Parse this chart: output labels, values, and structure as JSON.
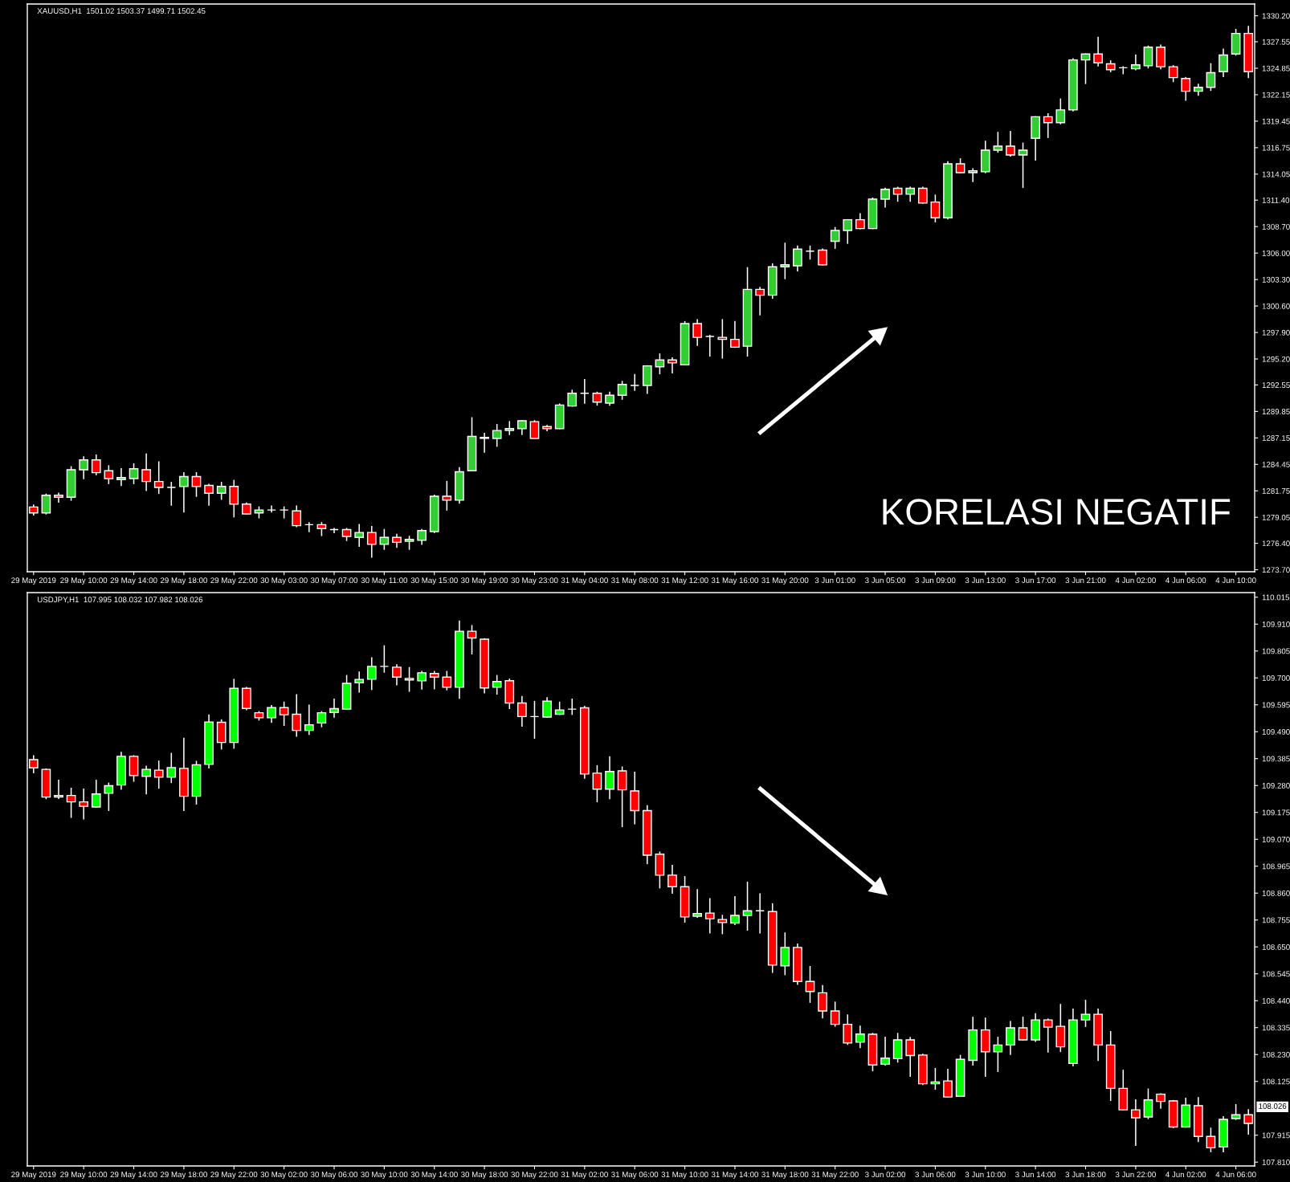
{
  "chart_data": [
    {
      "type": "candlestick",
      "title": "XAUUSD,H1  1501.02 1503.37 1499.71 1502.45",
      "categories": [
        "29 May 2019",
        null,
        null,
        null,
        "29 May 10:00",
        null,
        null,
        null,
        "29 May 14:00",
        null,
        null,
        null,
        "29 May 18:00",
        null,
        null,
        null,
        "29 May 22:00",
        null,
        null,
        null,
        "30 May 03:00",
        null,
        null,
        null,
        "30 May 07:00",
        null,
        null,
        null,
        "30 May 11:00",
        null,
        null,
        null,
        "30 May 15:00",
        null,
        null,
        null,
        "30 May 19:00",
        null,
        null,
        null,
        "30 May 23:00",
        null,
        null,
        null,
        "31 May 04:00",
        null,
        null,
        null,
        "31 May 08:00",
        null,
        null,
        null,
        "31 May 12:00",
        null,
        null,
        null,
        "31 May 16:00",
        null,
        null,
        null,
        "31 May 20:00",
        null,
        null,
        null,
        "3 Jun 01:00",
        null,
        null,
        null,
        "3 Jun 05:00",
        null,
        null,
        null,
        "3 Jun 09:00",
        null,
        null,
        null,
        "3 Jun 13:00",
        null,
        null,
        null,
        "3 Jun 17:00",
        null,
        null,
        null,
        "3 Jun 21:00",
        null,
        null,
        null,
        "4 Jun 02:00",
        null,
        null,
        null,
        "4 Jun 06:00",
        null,
        null,
        null,
        "4 Jun 10:00",
        null
      ],
      "ohlc": [
        [
          1280.1,
          1280.3,
          1279.3,
          1279.5
        ],
        [
          1279.5,
          1281.4,
          1279.4,
          1281.3
        ],
        [
          1281.3,
          1281.5,
          1280.6,
          1281.1
        ],
        [
          1281.1,
          1284.2,
          1280.8,
          1283.9
        ],
        [
          1283.9,
          1285.2,
          1283.0,
          1284.9
        ],
        [
          1284.9,
          1285.4,
          1283.4,
          1283.6
        ],
        [
          1283.8,
          1284.3,
          1282.5,
          1283.0
        ],
        [
          1282.9,
          1284.0,
          1282.3,
          1283.1
        ],
        [
          1283.0,
          1284.5,
          1282.5,
          1284.0
        ],
        [
          1283.9,
          1285.5,
          1281.8,
          1282.7
        ],
        [
          1282.7,
          1284.7,
          1281.5,
          1282.1
        ],
        [
          1282.1,
          1282.6,
          1280.3,
          1282.1
        ],
        [
          1282.2,
          1283.6,
          1279.6,
          1283.2
        ],
        [
          1283.2,
          1283.6,
          1281.2,
          1282.2
        ],
        [
          1282.3,
          1282.4,
          1280.3,
          1281.5
        ],
        [
          1281.5,
          1282.6,
          1280.9,
          1282.2
        ],
        [
          1282.2,
          1282.8,
          1279.1,
          1280.4
        ],
        [
          1280.4,
          1280.5,
          1279.4,
          1279.4
        ],
        [
          1279.5,
          1280.1,
          1279.0,
          1279.8
        ],
        [
          1279.8,
          1280.2,
          1279.6,
          1279.8
        ],
        [
          1279.8,
          1280.1,
          1279.0,
          1279.8
        ],
        [
          1279.7,
          1280.2,
          1278.1,
          1278.2
        ],
        [
          1278.3,
          1278.5,
          1277.6,
          1278.3
        ],
        [
          1278.3,
          1278.5,
          1277.2,
          1277.9
        ],
        [
          1277.8,
          1277.9,
          1277.5,
          1277.8
        ],
        [
          1277.8,
          1277.9,
          1276.7,
          1277.1
        ],
        [
          1277.0,
          1278.3,
          1276.1,
          1277.5
        ],
        [
          1277.5,
          1278.1,
          1275.0,
          1276.3
        ],
        [
          1276.3,
          1277.8,
          1275.8,
          1277.0
        ],
        [
          1277.0,
          1277.3,
          1276.0,
          1276.5
        ],
        [
          1276.6,
          1277.1,
          1275.8,
          1276.8
        ],
        [
          1276.7,
          1277.8,
          1276.3,
          1277.7
        ],
        [
          1277.6,
          1281.3,
          1277.5,
          1281.2
        ],
        [
          1281.2,
          1282.7,
          1279.8,
          1280.8
        ],
        [
          1280.8,
          1284.1,
          1280.5,
          1283.7
        ],
        [
          1283.8,
          1289.2,
          1283.8,
          1287.3
        ],
        [
          1287.2,
          1287.6,
          1285.7,
          1287.1
        ],
        [
          1287.1,
          1288.5,
          1286.3,
          1287.9
        ],
        [
          1287.9,
          1288.8,
          1287.5,
          1288.1
        ],
        [
          1288.1,
          1288.9,
          1287.5,
          1288.9
        ],
        [
          1288.8,
          1288.9,
          1287.1,
          1287.1
        ],
        [
          1288.3,
          1288.4,
          1287.9,
          1288.1
        ],
        [
          1288.1,
          1290.6,
          1288.1,
          1290.5
        ],
        [
          1290.4,
          1292.0,
          1290.4,
          1291.7
        ],
        [
          1291.7,
          1293.1,
          1290.7,
          1291.7
        ],
        [
          1291.7,
          1291.8,
          1290.5,
          1290.8
        ],
        [
          1290.7,
          1291.8,
          1290.5,
          1291.5
        ],
        [
          1291.5,
          1292.9,
          1291.1,
          1292.6
        ],
        [
          1292.5,
          1293.6,
          1292.0,
          1292.5
        ],
        [
          1292.5,
          1294.5,
          1291.7,
          1294.5
        ],
        [
          1294.4,
          1295.7,
          1293.7,
          1295.1
        ],
        [
          1295.1,
          1295.3,
          1293.8,
          1294.8
        ],
        [
          1294.6,
          1299.0,
          1294.6,
          1298.8
        ],
        [
          1298.8,
          1299.2,
          1296.6,
          1297.4
        ],
        [
          1297.5,
          1297.6,
          1295.5,
          1297.5
        ],
        [
          1297.4,
          1299.2,
          1295.3,
          1297.2
        ],
        [
          1297.2,
          1299.0,
          1296.4,
          1296.4
        ],
        [
          1296.5,
          1304.5,
          1295.5,
          1302.3
        ],
        [
          1302.3,
          1302.5,
          1299.7,
          1301.7
        ],
        [
          1301.7,
          1304.9,
          1301.4,
          1304.6
        ],
        [
          1304.6,
          1307.0,
          1303.4,
          1304.8
        ],
        [
          1304.7,
          1306.7,
          1304.2,
          1306.4
        ],
        [
          1306.2,
          1306.7,
          1305.4,
          1306.2
        ],
        [
          1306.3,
          1306.4,
          1304.8,
          1304.8
        ],
        [
          1307.2,
          1308.6,
          1306.5,
          1308.3
        ],
        [
          1308.3,
          1309.4,
          1307.0,
          1309.4
        ],
        [
          1309.4,
          1310.0,
          1308.5,
          1308.5
        ],
        [
          1308.5,
          1311.6,
          1308.5,
          1311.5
        ],
        [
          1311.5,
          1312.6,
          1310.7,
          1312.5
        ],
        [
          1312.6,
          1312.7,
          1311.3,
          1312.0
        ],
        [
          1312.0,
          1312.7,
          1311.3,
          1312.6
        ],
        [
          1312.6,
          1312.7,
          1311.1,
          1311.1
        ],
        [
          1311.2,
          1311.9,
          1309.2,
          1309.6
        ],
        [
          1309.6,
          1315.3,
          1309.5,
          1315.1
        ],
        [
          1315.1,
          1315.6,
          1314.2,
          1314.2
        ],
        [
          1314.2,
          1314.6,
          1313.3,
          1314.4
        ],
        [
          1314.3,
          1317.4,
          1314.2,
          1316.5
        ],
        [
          1316.5,
          1318.3,
          1316.3,
          1316.9
        ],
        [
          1316.9,
          1318.4,
          1315.9,
          1316.0
        ],
        [
          1316.0,
          1317.2,
          1312.7,
          1316.5
        ],
        [
          1317.7,
          1319.9,
          1315.5,
          1319.9
        ],
        [
          1319.9,
          1320.2,
          1317.8,
          1319.3
        ],
        [
          1319.3,
          1321.7,
          1319.2,
          1320.6
        ],
        [
          1320.6,
          1325.8,
          1320.5,
          1325.7
        ],
        [
          1325.7,
          1326.3,
          1323.3,
          1326.3
        ],
        [
          1326.3,
          1328.0,
          1325.1,
          1325.4
        ],
        [
          1325.3,
          1325.6,
          1324.5,
          1324.7
        ],
        [
          1324.9,
          1325.0,
          1324.3,
          1324.9
        ],
        [
          1324.8,
          1326.2,
          1324.7,
          1325.2
        ],
        [
          1325.1,
          1327.1,
          1324.9,
          1327.0
        ],
        [
          1327.0,
          1327.2,
          1324.8,
          1325.0
        ],
        [
          1325.0,
          1325.1,
          1323.5,
          1323.9
        ],
        [
          1323.8,
          1323.9,
          1321.6,
          1322.5
        ],
        [
          1322.5,
          1323.2,
          1322.1,
          1322.9
        ],
        [
          1322.9,
          1325.3,
          1322.6,
          1324.4
        ],
        [
          1324.5,
          1326.8,
          1324.0,
          1326.2
        ],
        [
          1326.3,
          1328.8,
          1326.2,
          1328.4
        ],
        [
          1328.4,
          1329.1,
          1323.9,
          1324.5
        ]
      ],
      "ylim": [
        1273.5,
        1331.4
      ],
      "yticks": [
        {
          "value": 1330.2,
          "label": "1330.20"
        },
        {
          "value": 1327.55,
          "label": "1327.55"
        },
        {
          "value": 1324.85,
          "label": "1324.85"
        },
        {
          "value": 1322.15,
          "label": "1322.15"
        },
        {
          "value": 1319.45,
          "label": "1319.45"
        },
        {
          "value": 1316.75,
          "label": "1316.75"
        },
        {
          "value": 1314.05,
          "label": "1314.05"
        },
        {
          "value": 1311.4,
          "label": "1311.40"
        },
        {
          "value": 1308.7,
          "label": "1308.70"
        },
        {
          "value": 1306.0,
          "label": "1306.00"
        },
        {
          "value": 1303.3,
          "label": "1303.30"
        },
        {
          "value": 1300.6,
          "label": "1300.60"
        },
        {
          "value": 1297.9,
          "label": "1297.90"
        },
        {
          "value": 1295.2,
          "label": "1295.20"
        },
        {
          "value": 1292.55,
          "label": "1292.55"
        },
        {
          "value": 1289.85,
          "label": "1289.85"
        },
        {
          "value": 1287.15,
          "label": "1287.15"
        },
        {
          "value": 1284.45,
          "label": "1284.45"
        },
        {
          "value": 1281.75,
          "label": "1281.75"
        },
        {
          "value": 1279.05,
          "label": "1279.05"
        },
        {
          "value": 1276.4,
          "label": "1276.40"
        },
        {
          "value": 1273.7,
          "label": "1273.70"
        }
      ],
      "annotations": [
        "KORELASI NEGATIF"
      ]
    },
    {
      "type": "candlestick",
      "title": "USDJPY,H1  107.995 108.032 107.982 108.026",
      "categories": [
        "29 May 2019",
        null,
        null,
        null,
        "29 May 10:00",
        null,
        null,
        null,
        "29 May 14:00",
        null,
        null,
        null,
        "29 May 18:00",
        null,
        null,
        null,
        "29 May 22:00",
        null,
        null,
        null,
        "30 May 02:00",
        null,
        null,
        null,
        "30 May 06:00",
        null,
        null,
        null,
        "30 May 10:00",
        null,
        null,
        null,
        "30 May 14:00",
        null,
        null,
        null,
        "30 May 18:00",
        null,
        null,
        null,
        "30 May 22:00",
        null,
        null,
        null,
        "31 May 02:00",
        null,
        null,
        null,
        "31 May 06:00",
        null,
        null,
        null,
        "31 May 10:00",
        null,
        null,
        null,
        "31 May 14:00",
        null,
        null,
        null,
        "31 May 18:00",
        null,
        null,
        null,
        "31 May 22:00",
        null,
        null,
        null,
        "3 Jun 02:00",
        null,
        null,
        null,
        "3 Jun 06:00",
        null,
        null,
        null,
        "3 Jun 10:00",
        null,
        null,
        null,
        "3 Jun 14:00",
        null,
        null,
        null,
        "3 Jun 18:00",
        null,
        null,
        null,
        "3 Jun 22:00",
        null,
        null,
        null,
        "4 Jun 02:00",
        null,
        null,
        null,
        "4 Jun 06:00",
        null
      ],
      "ohlc": [
        [
          109.381,
          109.396,
          109.33,
          109.349
        ],
        [
          109.343,
          109.344,
          109.229,
          109.235
        ],
        [
          109.235,
          109.3,
          109.23,
          109.241
        ],
        [
          109.241,
          109.269,
          109.156,
          109.216
        ],
        [
          109.216,
          109.266,
          109.15,
          109.199
        ],
        [
          109.196,
          109.3,
          109.196,
          109.247
        ],
        [
          109.25,
          109.289,
          109.183,
          109.279
        ],
        [
          109.282,
          109.409,
          109.266,
          109.394
        ],
        [
          109.394,
          109.396,
          109.297,
          109.319
        ],
        [
          109.316,
          109.355,
          109.248,
          109.343
        ],
        [
          109.34,
          109.375,
          109.27,
          109.313
        ],
        [
          109.313,
          109.405,
          109.292,
          109.35
        ],
        [
          109.347,
          109.464,
          109.183,
          109.238
        ],
        [
          109.238,
          109.374,
          109.208,
          109.361
        ],
        [
          109.363,
          109.555,
          109.349,
          109.528
        ],
        [
          109.527,
          109.536,
          109.423,
          109.448
        ],
        [
          109.448,
          109.694,
          109.426,
          109.659
        ],
        [
          109.659,
          109.662,
          109.576,
          109.581
        ],
        [
          109.564,
          109.568,
          109.536,
          109.545
        ],
        [
          109.545,
          109.592,
          109.527,
          109.584
        ],
        [
          109.584,
          109.605,
          109.515,
          109.556
        ],
        [
          109.558,
          109.634,
          109.473,
          109.495
        ],
        [
          109.495,
          109.593,
          109.48,
          109.517
        ],
        [
          109.524,
          109.568,
          109.51,
          109.564
        ],
        [
          109.565,
          109.617,
          109.547,
          109.58
        ],
        [
          109.578,
          109.709,
          109.578,
          109.679
        ],
        [
          109.681,
          109.723,
          109.645,
          109.694
        ],
        [
          109.695,
          109.778,
          109.655,
          109.745
        ],
        [
          109.745,
          109.825,
          109.723,
          109.745
        ],
        [
          109.742,
          109.751,
          109.673,
          109.703
        ],
        [
          109.698,
          109.74,
          109.648,
          109.692
        ],
        [
          109.689,
          109.725,
          109.657,
          109.72
        ],
        [
          109.717,
          109.725,
          109.658,
          109.703
        ],
        [
          109.703,
          109.725,
          109.654,
          109.664
        ],
        [
          109.664,
          109.922,
          109.621,
          109.882
        ],
        [
          109.882,
          109.904,
          109.794,
          109.856
        ],
        [
          109.851,
          109.853,
          109.642,
          109.661
        ],
        [
          109.664,
          109.709,
          109.637,
          109.686
        ],
        [
          109.689,
          109.695,
          109.581,
          109.602
        ],
        [
          109.602,
          109.627,
          109.512,
          109.549
        ],
        [
          109.549,
          109.608,
          109.465,
          109.549
        ],
        [
          109.547,
          109.622,
          109.547,
          109.609
        ],
        [
          109.558,
          109.605,
          109.558,
          109.575
        ],
        [
          109.578,
          109.617,
          109.558,
          109.578
        ],
        [
          109.583,
          109.589,
          109.309,
          109.325
        ],
        [
          109.328,
          109.357,
          109.217,
          109.266
        ],
        [
          109.266,
          109.392,
          109.229,
          109.335
        ],
        [
          109.337,
          109.352,
          109.12,
          109.263
        ],
        [
          109.259,
          109.332,
          109.131,
          109.182
        ],
        [
          109.182,
          109.201,
          108.975,
          109.008
        ],
        [
          109.012,
          109.02,
          108.881,
          108.93
        ],
        [
          108.93,
          108.968,
          108.86,
          108.885
        ],
        [
          108.885,
          108.924,
          108.747,
          108.767
        ],
        [
          108.77,
          108.873,
          108.766,
          108.78
        ],
        [
          108.782,
          108.838,
          108.705,
          108.76
        ],
        [
          108.757,
          108.773,
          108.702,
          108.745
        ],
        [
          108.743,
          108.846,
          108.738,
          108.773
        ],
        [
          108.773,
          108.902,
          108.716,
          108.791
        ],
        [
          108.791,
          108.857,
          108.705,
          108.791
        ],
        [
          108.788,
          108.818,
          108.551,
          108.579
        ],
        [
          108.576,
          108.704,
          108.542,
          108.648
        ],
        [
          108.648,
          108.661,
          108.504,
          108.515
        ],
        [
          108.515,
          108.573,
          108.434,
          108.476
        ],
        [
          108.471,
          108.499,
          108.373,
          108.4
        ],
        [
          108.4,
          108.434,
          108.341,
          108.348
        ],
        [
          108.348,
          108.384,
          108.27,
          108.275
        ],
        [
          108.278,
          108.34,
          108.257,
          108.31
        ],
        [
          108.309,
          108.312,
          108.167,
          108.189
        ],
        [
          108.192,
          108.297,
          108.189,
          108.216
        ],
        [
          108.214,
          108.312,
          108.201,
          108.287
        ],
        [
          108.287,
          108.296,
          108.145,
          108.226
        ],
        [
          108.228,
          108.231,
          108.113,
          108.116
        ],
        [
          108.116,
          108.175,
          108.095,
          108.123
        ],
        [
          108.127,
          108.172,
          108.064,
          108.064
        ],
        [
          108.067,
          108.226,
          108.067,
          108.211
        ],
        [
          108.207,
          108.375,
          108.189,
          108.326
        ],
        [
          108.326,
          108.372,
          108.145,
          108.241
        ],
        [
          108.241,
          108.297,
          108.164,
          108.267
        ],
        [
          108.267,
          108.358,
          108.231,
          108.334
        ],
        [
          108.334,
          108.375,
          108.287,
          108.287
        ],
        [
          108.287,
          108.389,
          108.282,
          108.365
        ],
        [
          108.365,
          108.368,
          108.24,
          108.337
        ],
        [
          108.34,
          108.425,
          108.242,
          108.26
        ],
        [
          108.195,
          108.407,
          108.186,
          108.365
        ],
        [
          108.365,
          108.441,
          108.34,
          108.387
        ],
        [
          108.387,
          108.407,
          108.207,
          108.267
        ],
        [
          108.267,
          108.319,
          108.051,
          108.098
        ],
        [
          108.098,
          108.168,
          108.014,
          108.014
        ],
        [
          108.014,
          108.053,
          107.876,
          107.983
        ],
        [
          107.986,
          108.095,
          107.98,
          108.053
        ],
        [
          108.075,
          108.076,
          108.021,
          108.047
        ],
        [
          108.049,
          108.05,
          107.945,
          107.947
        ],
        [
          107.947,
          108.059,
          107.947,
          108.033
        ],
        [
          108.03,
          108.061,
          107.891,
          107.91
        ],
        [
          107.91,
          107.942,
          107.851,
          107.866
        ],
        [
          107.869,
          107.987,
          107.851,
          107.977
        ],
        [
          107.98,
          108.034,
          107.977,
          107.995
        ],
        [
          107.995,
          108.014,
          107.92,
          107.961
        ]
      ],
      "ylim": [
        107.795,
        110.033
      ],
      "yticks": [
        {
          "value": 110.015,
          "label": "110.015"
        },
        {
          "value": 109.91,
          "label": "109.910"
        },
        {
          "value": 109.805,
          "label": "109.805"
        },
        {
          "value": 109.7,
          "label": "109.700"
        },
        {
          "value": 109.595,
          "label": "109.595"
        },
        {
          "value": 109.49,
          "label": "109.490"
        },
        {
          "value": 109.385,
          "label": "109.385"
        },
        {
          "value": 109.28,
          "label": "109.280"
        },
        {
          "value": 109.175,
          "label": "109.175"
        },
        {
          "value": 109.07,
          "label": "109.070"
        },
        {
          "value": 108.965,
          "label": "108.965"
        },
        {
          "value": 108.86,
          "label": "108.860"
        },
        {
          "value": 108.755,
          "label": "108.755"
        },
        {
          "value": 108.65,
          "label": "108.650"
        },
        {
          "value": 108.545,
          "label": "108.545"
        },
        {
          "value": 108.44,
          "label": "108.440"
        },
        {
          "value": 108.335,
          "label": "108.335"
        },
        {
          "value": 108.23,
          "label": "108.230"
        },
        {
          "value": 108.125,
          "label": "108.125"
        },
        {
          "value": 107.915,
          "label": "107.915"
        },
        {
          "value": 107.81,
          "label": "107.810"
        }
      ],
      "annotations": [
        "108.026"
      ]
    }
  ]
}
